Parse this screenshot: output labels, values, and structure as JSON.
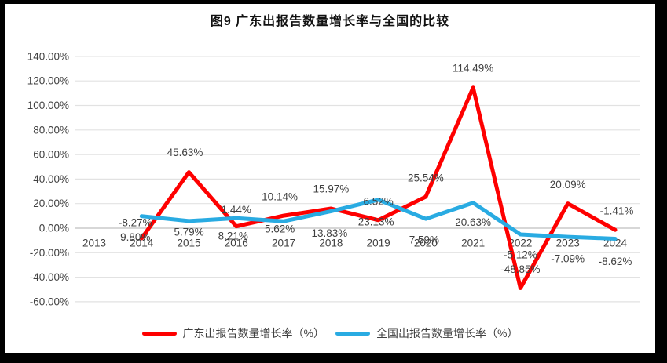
{
  "title": "图9  广东出报告数量增长率与全国的比较",
  "chart_data": {
    "type": "line",
    "title": "图9  广东出报告数量增长率与全国的比较",
    "categories": [
      "2013",
      "2014",
      "2015",
      "2016",
      "2017",
      "2018",
      "2019",
      "2020",
      "2021",
      "2022",
      "2023",
      "2024"
    ],
    "series": [
      {
        "name": "广东出报告数量增长率（%）",
        "color": "#fe0000",
        "values": [
          null,
          -8.27,
          45.63,
          1.44,
          10.14,
          15.97,
          6.52,
          25.54,
          114.49,
          -48.85,
          20.09,
          -1.41
        ],
        "labels": [
          "",
          "-8.27%",
          "45.63%",
          "1.44%",
          "10.14%",
          "15.97%",
          "6.52%",
          "25.54%",
          "114.49%",
          "-48.85%",
          "20.09%",
          "-1.41%"
        ],
        "label_dx": [
          0,
          -8,
          -5,
          0,
          -5,
          0,
          0,
          0,
          0,
          0,
          0,
          2
        ],
        "label_dy": [
          0,
          -20,
          -25,
          -21,
          -24,
          -25,
          -24,
          -24,
          -25,
          -24,
          -24,
          -24
        ]
      },
      {
        "name": "全国出报告数量增长率（%）",
        "color": "#29abe2",
        "values": [
          null,
          9.8,
          5.79,
          8.21,
          5.62,
          13.83,
          23.13,
          7.59,
          20.63,
          -5.12,
          -7.09,
          -8.62
        ],
        "labels": [
          "",
          "9.80%",
          "5.79%",
          "8.21%",
          "5.62%",
          "13.83%",
          "23.13%",
          "7.59%",
          "20.63%",
          "-5.12%",
          "-7.09%",
          "-8.62%"
        ],
        "label_dx": [
          0,
          -8,
          0,
          -4,
          -5,
          -2,
          -3,
          -2,
          0,
          0,
          0,
          0
        ],
        "label_dy": [
          0,
          27,
          14,
          23,
          10,
          28,
          28,
          27,
          25,
          26,
          28,
          29
        ]
      }
    ],
    "ytick_labels": [
      "140.00%",
      "120.00%",
      "100.00%",
      "80.00%",
      "60.00%",
      "40.00%",
      "20.00%",
      "0.00%",
      "-20.00%",
      "-40.00%",
      "-60.00%"
    ],
    "ylim": [
      -60,
      140
    ],
    "ytick_step": 20,
    "xlabel": "",
    "ylabel": "",
    "grid": true,
    "legend_position": "bottom"
  },
  "colors": {
    "background": "#ffffff",
    "frame": "#000000",
    "gridline": "#e2e2e2",
    "zero_axis": "#bfbfbf",
    "text": "#404040"
  }
}
